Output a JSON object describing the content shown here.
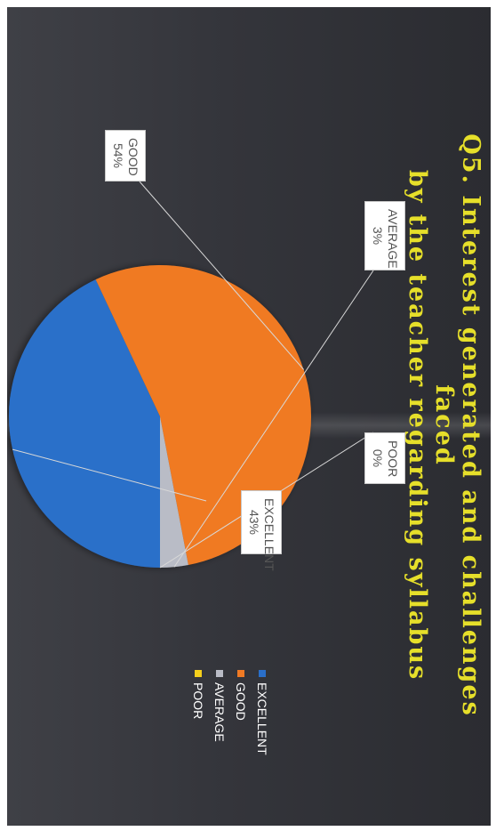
{
  "chart_data": {
    "type": "pie",
    "title": "Q5. Interest generated and challenges faced by the teacher regarding syllabus",
    "title_lines": [
      "Q5. Interest generated and challenges faced",
      "by the teacher regarding syllabus"
    ],
    "categories": [
      "EXCELLENT",
      "GOOD",
      "AVERAGE",
      "POOR"
    ],
    "values": [
      43,
      54,
      3,
      0
    ],
    "labels": [
      {
        "name": "EXCELLENT",
        "value": "43%"
      },
      {
        "name": "GOOD",
        "value": "54%"
      },
      {
        "name": "AVERAGE",
        "value": "3%"
      },
      {
        "name": "POOR",
        "value": "0%"
      }
    ],
    "colors": [
      "#2a6fc9",
      "#f07a24",
      "#b9bcc6",
      "#f5cf1c"
    ],
    "legend": [
      "EXCELLENT",
      "GOOD",
      "AVERAGE",
      "POOR"
    ],
    "legend_position": "right"
  }
}
